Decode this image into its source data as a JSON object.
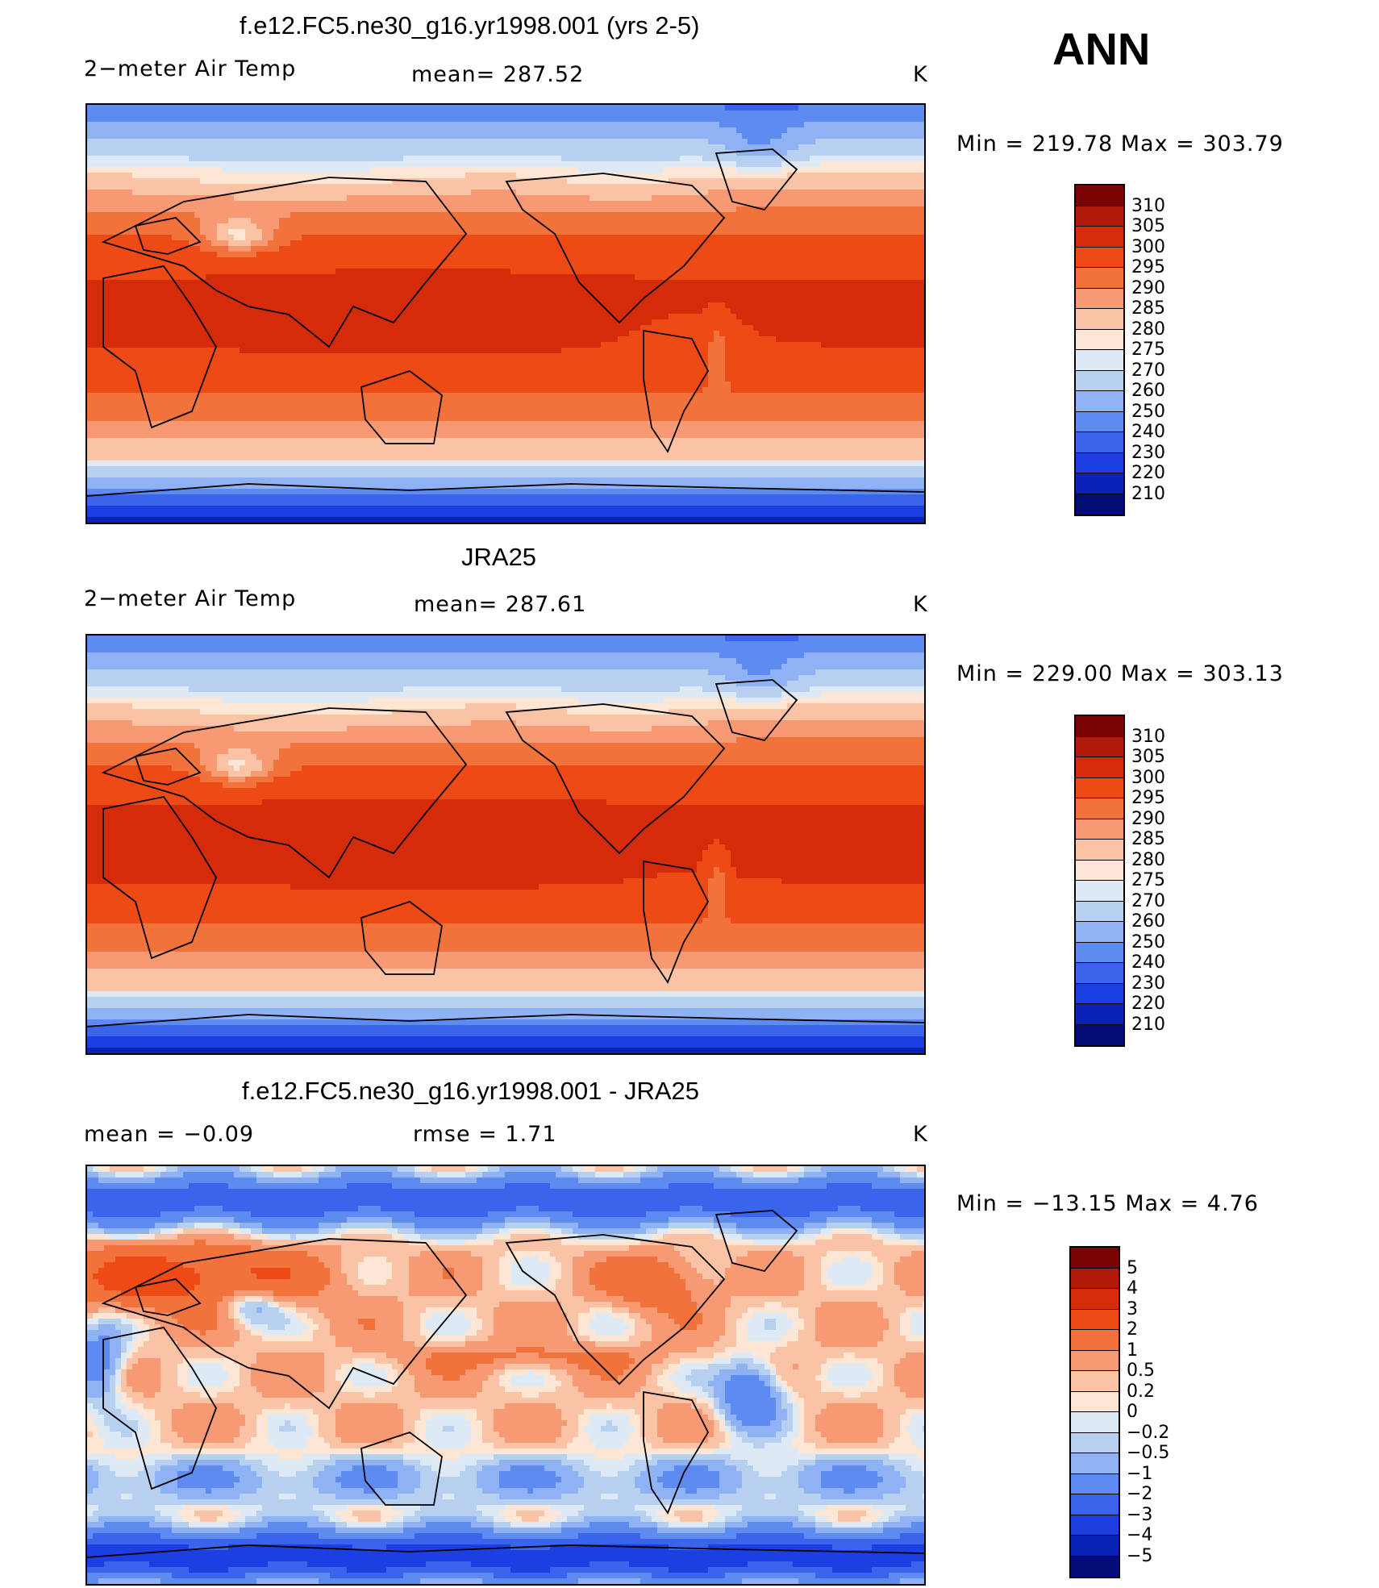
{
  "season": "ANN",
  "panels": [
    {
      "title": "f.e12.FC5.ne30_g16.yr1998.001 (yrs 2-5)",
      "left_label": "2−meter Air Temp",
      "center_label": "mean=  287.52",
      "units": "K",
      "minmax": "Min  =  219.78  Max  =  303.79",
      "field": "model"
    },
    {
      "title": "JRA25",
      "left_label": "2−meter Air Temp",
      "center_label": "mean=  287.61",
      "units": "K",
      "minmax": "Min  =  229.00  Max  =  303.13",
      "field": "obs"
    },
    {
      "title": "f.e12.FC5.ne30_g16.yr1998.001 - JRA25",
      "left_label": "mean  =    −0.09",
      "center_label": "rmse  =     1.71",
      "units": "K",
      "minmax": "Min  =  −13.15  Max  =      4.76",
      "field": "diff"
    }
  ],
  "chart_data": [
    {
      "type": "heatmap",
      "title": "f.e12.FC5.ne30_g16.yr1998.001 (yrs 2-5)",
      "variable": "2-meter Air Temp",
      "units": "K",
      "mean": 287.52,
      "min": 219.78,
      "max": 303.79,
      "colorbar_levels": [
        "310",
        "305",
        "300",
        "295",
        "290",
        "285",
        "280",
        "275",
        "270",
        "260",
        "250",
        "240",
        "230",
        "220",
        "210"
      ],
      "colorbar_colors": [
        "#7a0403",
        "#b01a08",
        "#d42c0a",
        "#ee4a15",
        "#f2723c",
        "#f79a74",
        "#fac3a6",
        "#fde6d4",
        "#dde9f5",
        "#b8d0f0",
        "#8fb2f5",
        "#5d8bf0",
        "#3a64ec",
        "#1b3fe0",
        "#0a22b5",
        "#030d78"
      ]
    },
    {
      "type": "heatmap",
      "title": "JRA25",
      "variable": "2-meter Air Temp",
      "units": "K",
      "mean": 287.61,
      "min": 229.0,
      "max": 303.13,
      "colorbar_levels": [
        "310",
        "305",
        "300",
        "295",
        "290",
        "285",
        "280",
        "275",
        "270",
        "260",
        "250",
        "240",
        "230",
        "220",
        "210"
      ],
      "colorbar_colors": [
        "#7a0403",
        "#b01a08",
        "#d42c0a",
        "#ee4a15",
        "#f2723c",
        "#f79a74",
        "#fac3a6",
        "#fde6d4",
        "#dde9f5",
        "#b8d0f0",
        "#8fb2f5",
        "#5d8bf0",
        "#3a64ec",
        "#1b3fe0",
        "#0a22b5",
        "#030d78"
      ]
    },
    {
      "type": "heatmap",
      "title": "f.e12.FC5.ne30_g16.yr1998.001 - JRA25",
      "units": "K",
      "mean": -0.09,
      "rmse": 1.71,
      "min": -13.15,
      "max": 4.76,
      "colorbar_levels": [
        "5",
        "4",
        "3",
        "2",
        "1",
        "0.5",
        "0.2",
        "0",
        "−0.2",
        "−0.5",
        "−1",
        "−2",
        "−3",
        "−4",
        "−5"
      ],
      "colorbar_colors": [
        "#7a0403",
        "#b01a08",
        "#d42c0a",
        "#ee4a15",
        "#f2723c",
        "#f79a74",
        "#fac3a6",
        "#fde6d4",
        "#dde9f5",
        "#b8d0f0",
        "#8fb2f5",
        "#5d8bf0",
        "#3a64ec",
        "#1b3fe0",
        "#0a22b5",
        "#030d78"
      ]
    }
  ]
}
